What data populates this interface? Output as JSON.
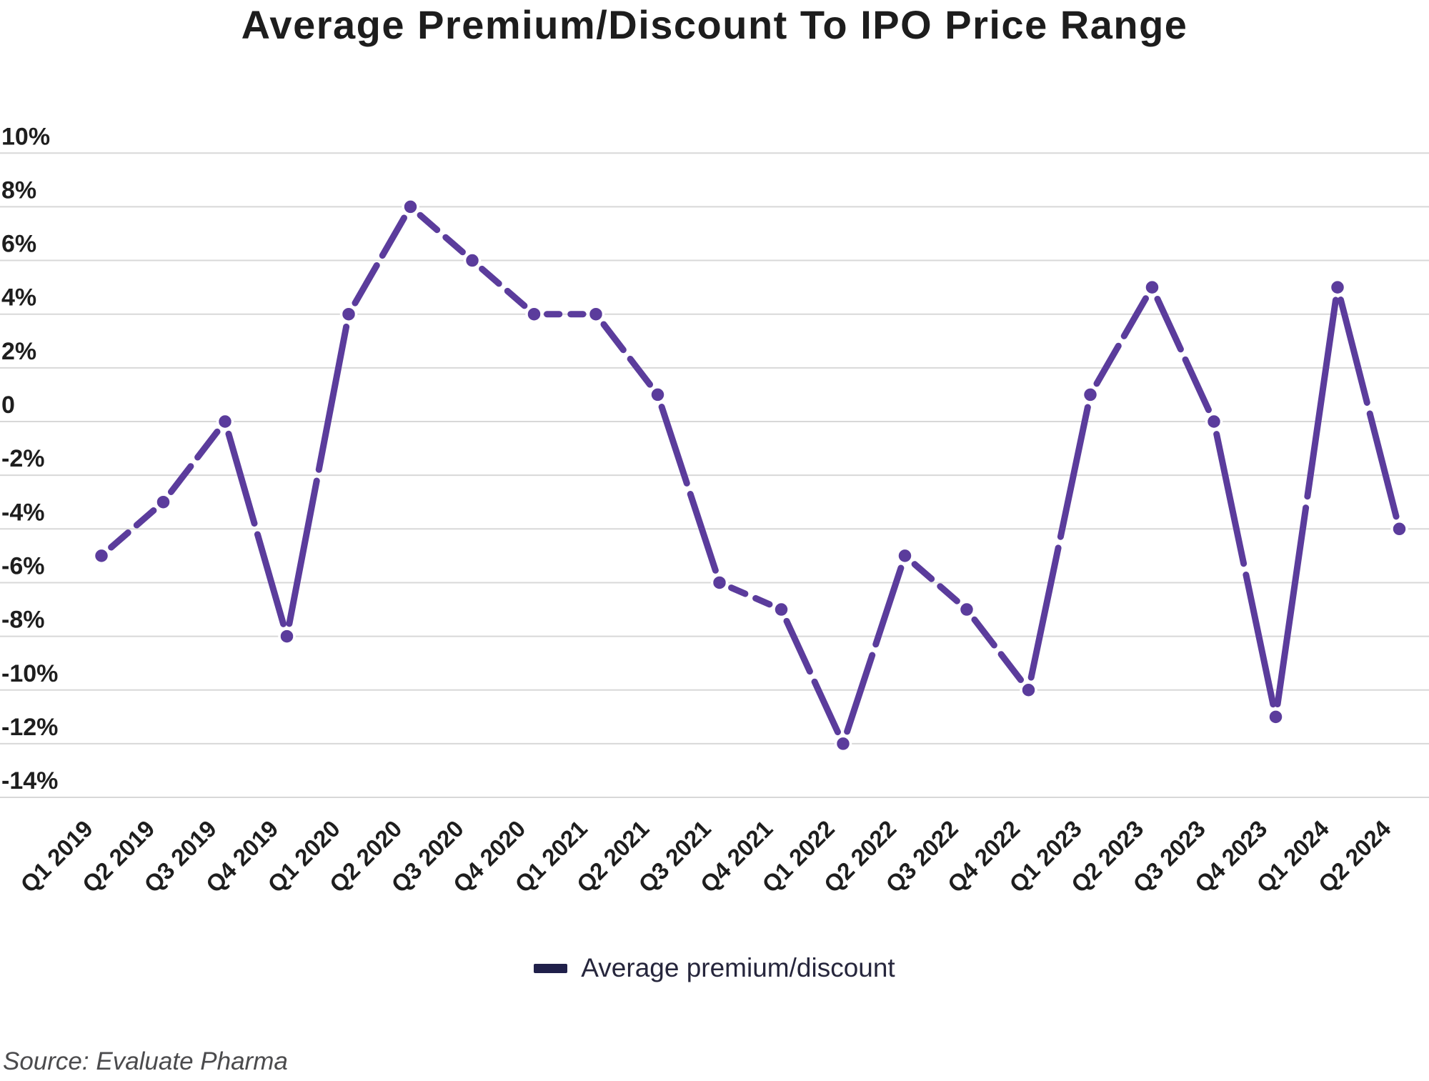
{
  "title": "Average Premium/Discount To IPO Price Range",
  "source": "Source: Evaluate Pharma",
  "legend": {
    "label": "Average premium/discount",
    "swatch_color": "#20204a"
  },
  "colors": {
    "line": "#5b3c9c",
    "marker_fill": "#5b3c9c",
    "marker_halo": "#ffffff",
    "grid": "#d8d8d8",
    "axis_text": "#1e1e1e",
    "title_text": "#1d1d1d",
    "legend_text": "#26263c",
    "source_text": "#4b4b4d",
    "background": "#ffffff"
  },
  "chart_data": {
    "type": "line",
    "title": "Average Premium/Discount To IPO Price Range",
    "xlabel": "",
    "ylabel": "",
    "unit": "%",
    "categories": [
      "Q1 2019",
      "Q2 2019",
      "Q3 2019",
      "Q4 2019",
      "Q1 2020",
      "Q2 2020",
      "Q3 2020",
      "Q4 2020",
      "Q1 2021",
      "Q2 2021",
      "Q3 2021",
      "Q4 2021",
      "Q1 2022",
      "Q2 2022",
      "Q3 2022",
      "Q4 2022",
      "Q1 2023",
      "Q2 2023",
      "Q3 2023",
      "Q4 2023",
      "Q1 2024",
      "Q2 2024"
    ],
    "series": [
      {
        "name": "Average premium/discount",
        "values": [
          -5,
          -3,
          0,
          -8,
          4,
          8,
          6,
          4,
          4,
          1,
          -6,
          -7,
          -12,
          -5,
          -7,
          -10,
          1,
          5,
          0,
          -11,
          5,
          -4
        ]
      }
    ],
    "yticks": [
      10,
      8,
      6,
      4,
      2,
      0,
      -2,
      -4,
      -6,
      -8,
      -10,
      -12,
      -14
    ],
    "ytick_labels": [
      "10%",
      "8%",
      "6%",
      "4%",
      "2%",
      "0",
      "-2%",
      "-4%",
      "-6%",
      "-8%",
      "-10%",
      "-12%",
      "-14%"
    ],
    "ylim": [
      -14,
      10
    ],
    "grid": "horizontal",
    "legend_position": "bottom",
    "marker": "circle",
    "x_label_rotation_deg": -45
  }
}
